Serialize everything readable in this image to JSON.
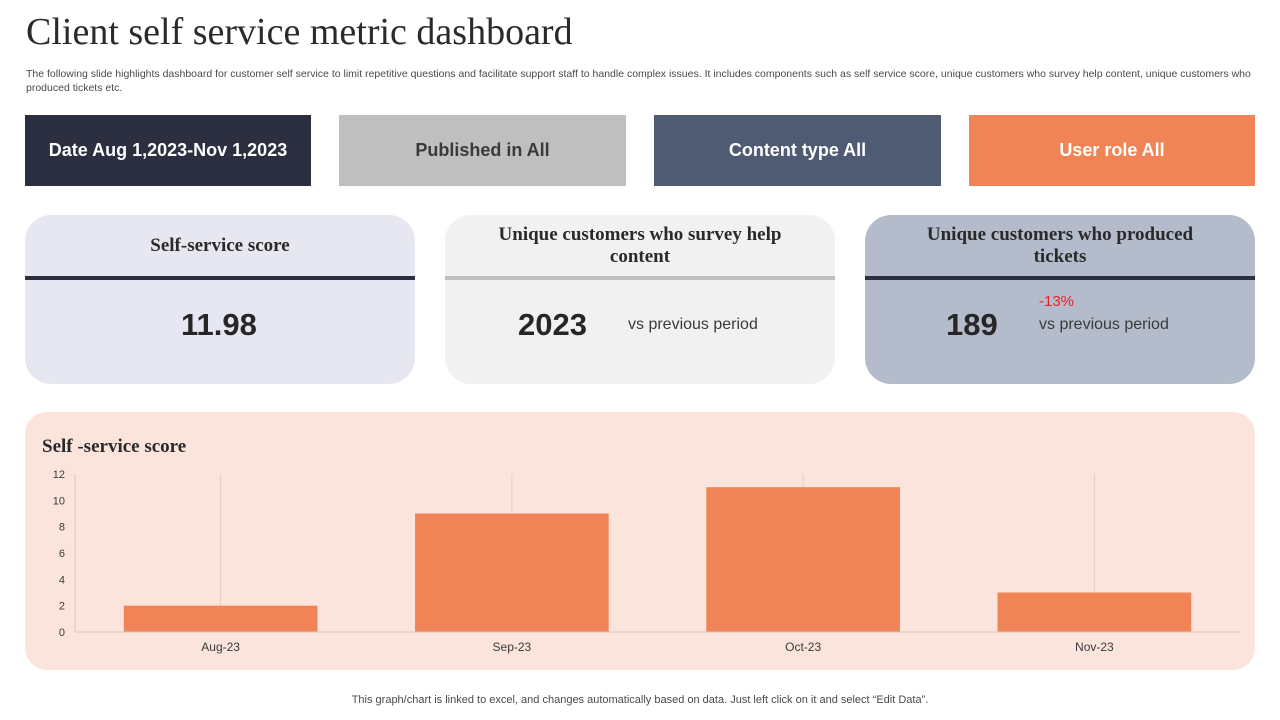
{
  "title": "Client self service metric dashboard",
  "subtitle": "The following slide highlights dashboard for customer self service to limit repetitive questions and facilitate support staff to handle complex issues. It includes components such as self service score, unique customers who survey help content, unique customers who produced tickets etc.",
  "filters": {
    "date": "Date  Aug 1,2023-Nov 1,2023",
    "published": "Published in All",
    "content_type": "Content type All",
    "user_role": "User role All"
  },
  "filter_colors": [
    "#2b2f3f",
    "#bfbfbf",
    "#4f5b73",
    "#f08456"
  ],
  "cards": {
    "score": {
      "title": "Self-service score",
      "value": "11.98"
    },
    "survey": {
      "title": "Unique customers who survey help content",
      "value": "2023",
      "comparison": "vs previous period"
    },
    "tickets": {
      "title": "Unique customers who produced tickets",
      "value": "189",
      "change": "-13%",
      "comparison": "vs previous period"
    }
  },
  "chart_data": {
    "type": "bar",
    "title": "Self -service score",
    "categories": [
      "Aug-23",
      "Sep-23",
      "Oct-23",
      "Nov-23"
    ],
    "values": [
      2,
      9,
      11,
      3
    ],
    "ylim": [
      0,
      12
    ],
    "yticks": [
      0,
      2,
      4,
      6,
      8,
      10,
      12
    ],
    "xlabel": "",
    "ylabel": "",
    "grid": "vertical",
    "bar_color": "#f08456"
  },
  "footer": "This graph/chart is linked to excel,  and changes automatically based on data. Just left click on it and select “Edit Data”."
}
